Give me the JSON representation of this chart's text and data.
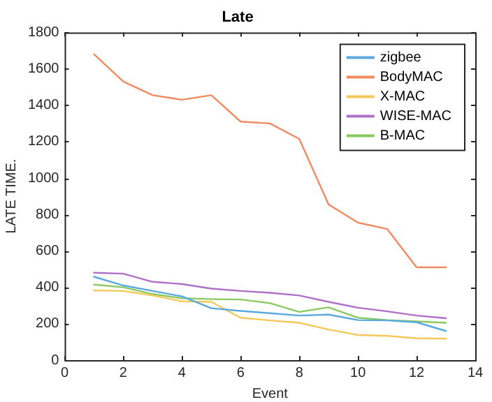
{
  "chart_data": {
    "type": "line",
    "title": "Late",
    "xlabel": "Event",
    "ylabel": "LATE TIME.",
    "x": [
      1,
      2,
      3,
      4,
      5,
      6,
      7,
      8,
      9,
      10,
      11,
      12,
      13
    ],
    "xlim": [
      0,
      14
    ],
    "xticks": [
      0,
      2,
      4,
      6,
      8,
      10,
      12,
      14
    ],
    "ylim": [
      0,
      1800
    ],
    "yticks": [
      0,
      200,
      400,
      600,
      800,
      1000,
      1200,
      1400,
      1600,
      1800
    ],
    "grid": false,
    "legend": "top right",
    "marker": "none",
    "line_style": "solid",
    "series": [
      {
        "name": "zigbee",
        "color": "#5aa9e0",
        "values": [
          458,
          410,
          380,
          350,
          285,
          270,
          258,
          245,
          250,
          220,
          218,
          208,
          160
        ]
      },
      {
        "name": "BodyMAC",
        "color": "#f08a60",
        "values": [
          1680,
          1530,
          1455,
          1430,
          1455,
          1310,
          1300,
          1215,
          855,
          755,
          720,
          510,
          510
        ]
      },
      {
        "name": "X-MAC",
        "color": "#f5c85a",
        "values": [
          383,
          380,
          355,
          323,
          320,
          233,
          218,
          205,
          168,
          138,
          133,
          120,
          118
        ]
      },
      {
        "name": "WISE-MAC",
        "color": "#b070c8",
        "values": [
          480,
          475,
          430,
          418,
          393,
          380,
          370,
          355,
          320,
          288,
          268,
          245,
          230
        ]
      },
      {
        "name": "B-MAC",
        "color": "#8cc860",
        "values": [
          415,
          400,
          363,
          340,
          335,
          333,
          313,
          265,
          290,
          233,
          220,
          213,
          205
        ]
      }
    ]
  }
}
